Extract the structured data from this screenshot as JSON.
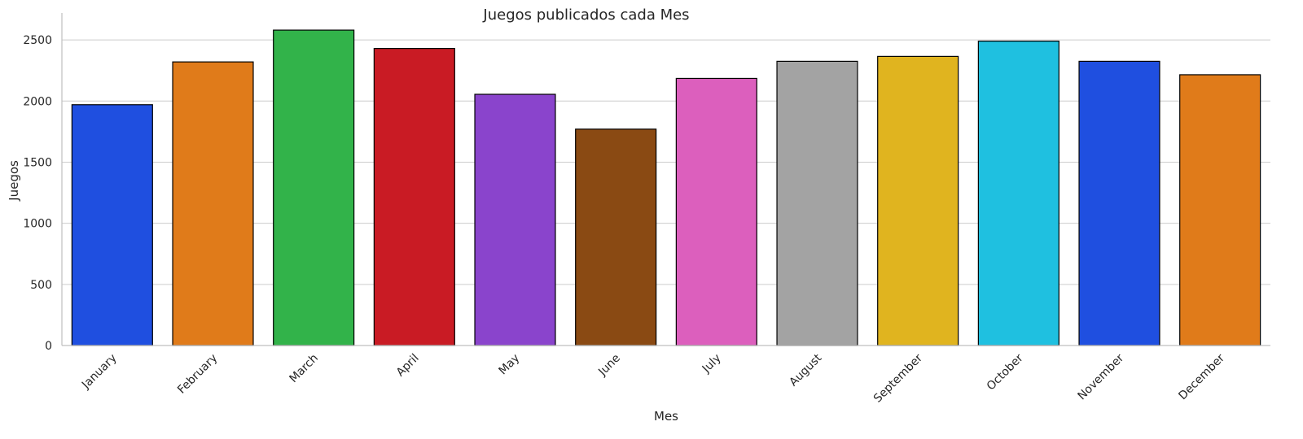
{
  "chart_data": {
    "type": "bar",
    "title": "Juegos publicados cada Mes",
    "xlabel": "Mes",
    "ylabel": "Juegos",
    "ylim": [
      0,
      2720
    ],
    "yticks": [
      0,
      500,
      1000,
      1500,
      2000,
      2500
    ],
    "grid": "horizontal",
    "categories": [
      "January",
      "February",
      "March",
      "April",
      "May",
      "June",
      "July",
      "August",
      "September",
      "October",
      "November",
      "December"
    ],
    "values": [
      1970,
      2320,
      2580,
      2430,
      2055,
      1770,
      2185,
      2325,
      2365,
      2490,
      2325,
      2215
    ],
    "colors": [
      "#1f4fe0",
      "#e07b1a",
      "#32b34a",
      "#c91b24",
      "#8a44cc",
      "#8a4a13",
      "#dc5fbd",
      "#a3a3a3",
      "#e0b41f",
      "#1fc0e0",
      "#1f4fe0",
      "#e07b1a"
    ]
  }
}
